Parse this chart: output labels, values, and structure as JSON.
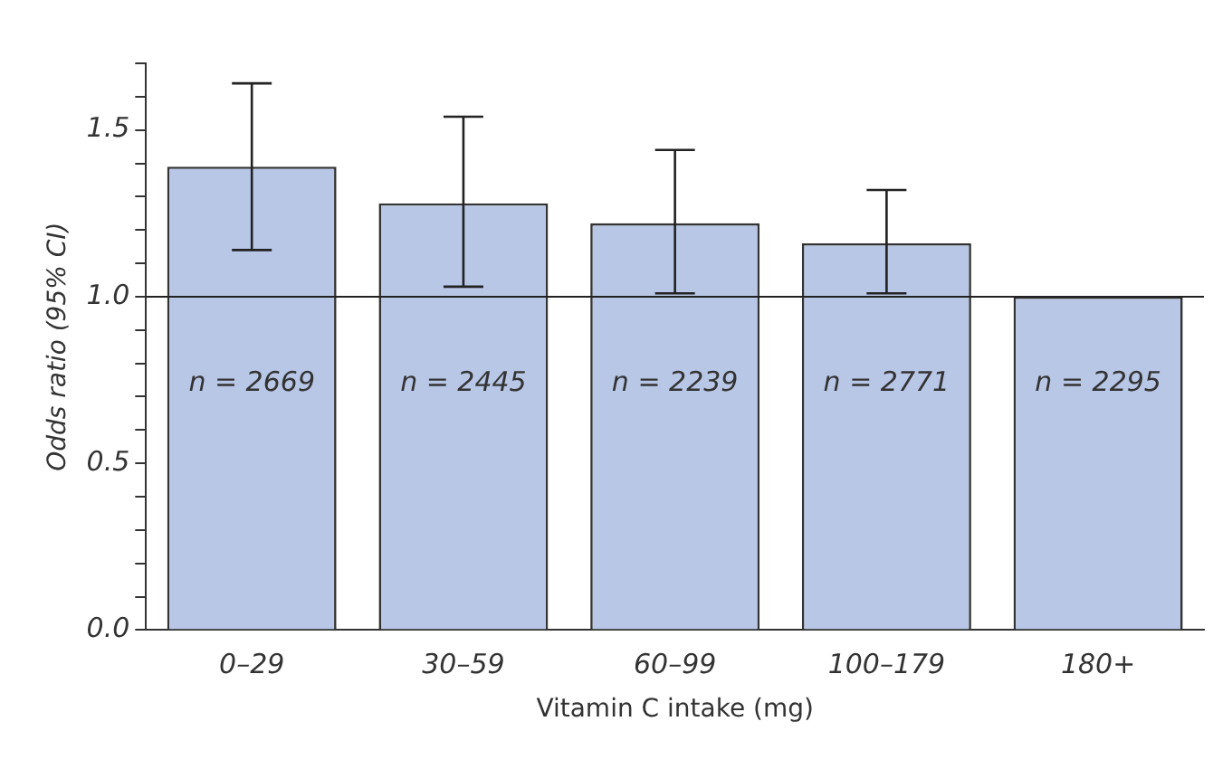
{
  "chart_data": {
    "type": "bar",
    "xlabel": "Vitamin C intake (mg)",
    "ylabel": "Odds ratio (95% CI)",
    "categories": [
      "0–29",
      "30–59",
      "60–99",
      "100–179",
      "180+"
    ],
    "values": [
      1.39,
      1.28,
      1.22,
      1.16,
      1.0
    ],
    "errors": [
      [
        1.14,
        1.64
      ],
      [
        1.03,
        1.54
      ],
      [
        1.01,
        1.44
      ],
      [
        1.01,
        1.32
      ],
      null
    ],
    "color": "#b8c7e6",
    "ylim": [
      0,
      1.7
    ],
    "yticks": [
      {
        "value": 0,
        "label": "0.0"
      },
      {
        "value": 0.1,
        "label": null
      },
      {
        "value": 0.2,
        "label": null
      },
      {
        "value": 0.3,
        "label": null
      },
      {
        "value": 0.4,
        "label": null
      },
      {
        "value": 0.5,
        "label": "0.5"
      },
      {
        "value": 0.6,
        "label": null
      },
      {
        "value": 0.7,
        "label": null
      },
      {
        "value": 0.8,
        "label": null
      },
      {
        "value": 0.9,
        "label": null
      },
      {
        "value": 1,
        "label": "1.0"
      },
      {
        "value": 1.1,
        "label": null
      },
      {
        "value": 1.2,
        "label": null
      },
      {
        "value": 1.3,
        "label": null
      },
      {
        "value": 1.4,
        "label": null
      },
      {
        "value": 1.5,
        "label": "1.5"
      },
      {
        "value": 1.6,
        "label": null
      },
      {
        "value": 1.7,
        "label": null
      }
    ],
    "ref_lines": [
      {
        "axis": "y",
        "value": 1,
        "color": "#222222"
      }
    ],
    "annotations": [
      "n = 2669",
      "n = 2445",
      "n = 2239",
      "n = 2771",
      "n = 2295"
    ],
    "grid": false,
    "legend": false
  }
}
